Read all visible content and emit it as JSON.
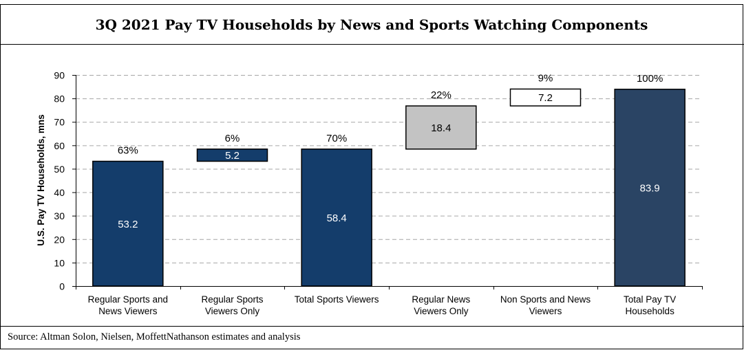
{
  "title": "3Q 2021 Pay TV Households by News and Sports Watching Components",
  "source": "Source: Altman Solon, Nielsen, MoffettNathanson estimates and analysis",
  "colors": {
    "navy": "#143d6b",
    "slate": "#2a4464",
    "gray": "#c3c3c3",
    "white": "#ffffff",
    "grid": "#a6a6a6"
  },
  "chart_data": {
    "type": "bar",
    "subtype": "waterfall",
    "ylabel": "U.S. Pay TV Households, mns",
    "ylim": [
      0,
      90
    ],
    "yticks": [
      0,
      10,
      20,
      30,
      40,
      50,
      60,
      70,
      80,
      90
    ],
    "grid": true,
    "categories": [
      [
        "Regular Sports and",
        "News Viewers"
      ],
      [
        "Regular Sports",
        "Viewers Only"
      ],
      [
        "Total Sports Viewers"
      ],
      [
        "Regular News",
        "Viewers Only"
      ],
      [
        "Non Sports and News",
        "Viewers"
      ],
      [
        "Total Pay TV",
        "Households"
      ]
    ],
    "bars": [
      {
        "base": 0,
        "value": 53.2,
        "label": "53.2",
        "pct": "63%",
        "color": "navy"
      },
      {
        "base": 53.2,
        "value": 5.2,
        "label": "5.2",
        "pct": "6%",
        "color": "navy"
      },
      {
        "base": 0,
        "value": 58.4,
        "label": "58.4",
        "pct": "70%",
        "color": "navy"
      },
      {
        "base": 58.4,
        "value": 18.4,
        "label": "18.4",
        "pct": "22%",
        "color": "gray"
      },
      {
        "base": 76.8,
        "value": 7.2,
        "label": "7.2",
        "pct": "9%",
        "color": "white"
      },
      {
        "base": 0,
        "value": 83.9,
        "label": "83.9",
        "pct": "100%",
        "color": "slate"
      }
    ]
  }
}
